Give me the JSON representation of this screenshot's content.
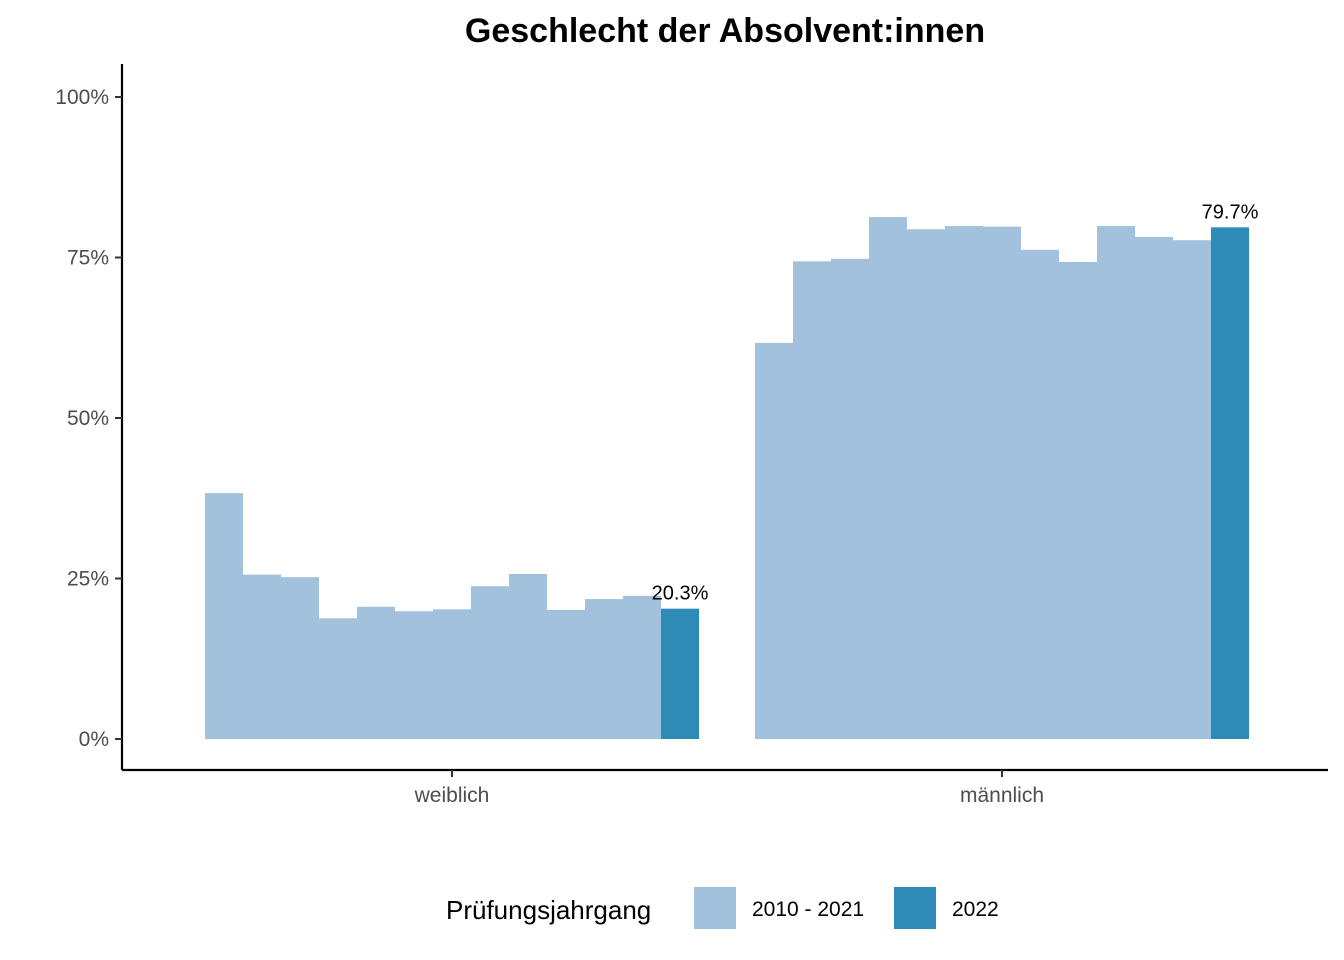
{
  "chart_data": {
    "type": "bar",
    "title": "Geschlecht der Absolvent:innen",
    "xlabel": "",
    "ylabel": "",
    "ylim": [
      0,
      1.05
    ],
    "yticks": [
      "0%",
      "25%",
      "50%",
      "75%",
      "100%"
    ],
    "categories": [
      "weiblich",
      "männlich"
    ],
    "grid": false,
    "legend": {
      "title": "Prüfungsjahrgang",
      "position": "bottom",
      "entries": [
        {
          "name": "2010 - 2021",
          "color": "#a1c1dc"
        },
        {
          "name": "2022",
          "color": "#2e8ab7"
        }
      ]
    },
    "series": [
      {
        "name": "2010 - 2021",
        "color": "#a1c1dc",
        "values": {
          "weiblich": [
            0.383,
            0.256,
            0.252,
            0.188,
            0.206,
            0.199,
            0.202,
            0.238,
            0.257,
            0.201,
            0.218,
            0.223
          ],
          "männlich": [
            0.617,
            0.744,
            0.748,
            0.813,
            0.794,
            0.799,
            0.798,
            0.762,
            0.743,
            0.799,
            0.782,
            0.777
          ]
        }
      },
      {
        "name": "2022",
        "color": "#2e8ab7",
        "values": {
          "weiblich": [
            0.203
          ],
          "männlich": [
            0.797
          ]
        },
        "labels": {
          "weiblich": "20.3%",
          "männlich": "79.7%"
        }
      }
    ]
  }
}
